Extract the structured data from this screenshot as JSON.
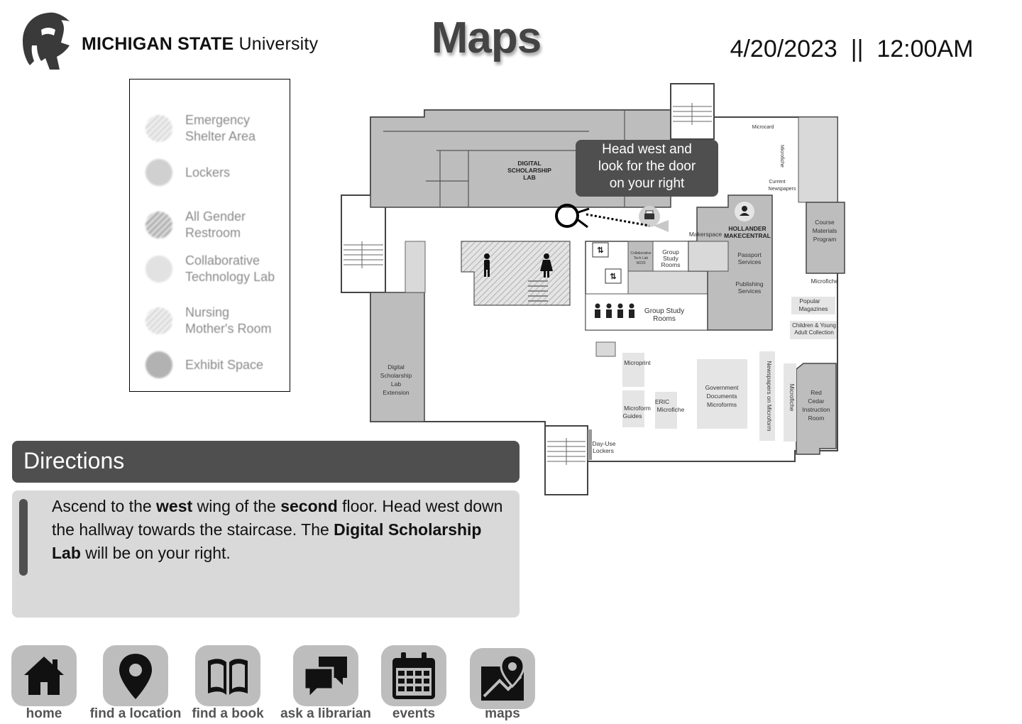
{
  "header": {
    "brand_bold": "MICHIGAN STATE",
    "brand_regular": "University",
    "title": "Maps",
    "date": "4/20/2023",
    "separator": "||",
    "time": "12:00AM"
  },
  "legend": {
    "items": [
      {
        "label_line1": "Emergency",
        "label_line2": "Shelter Area",
        "icon": "hatched-circle-icon"
      },
      {
        "label_line1": "Lockers",
        "label_line2": "",
        "icon": "gray-circle-icon"
      },
      {
        "label_line1": "All Gender",
        "label_line2": "Restroom",
        "icon": "hatched-circle-icon"
      },
      {
        "label_line1": "Collaborative",
        "label_line2": "Technology Lab",
        "icon": "pale-circle-icon"
      },
      {
        "label_line1": "Nursing",
        "label_line2": "Mother's Room",
        "icon": "hatched-circle-icon"
      },
      {
        "label_line1": "Exhibit Space",
        "label_line2": "",
        "icon": "dark-circle-icon"
      }
    ]
  },
  "map": {
    "labels": {
      "digital_lab_1": "DIGITAL",
      "digital_lab_2": "SCHOLARSHIP",
      "digital_lab_3": "LAB",
      "microcard": "Microcard",
      "microfiche_vert": "Microfiche",
      "current_news_1": "Current",
      "current_news_2": "Newspapers",
      "course_1": "Course",
      "course_2": "Materials",
      "course_3": "Program",
      "makerspace": "Makerspace",
      "hollander_1": "HOLLANDER",
      "hollander_2": "MAKECENTRAL",
      "passport_1": "Passport",
      "passport_2": "Services",
      "publishing_1": "Publishing",
      "publishing_2": "Services",
      "microfiche": "Microfiche",
      "popular_1": "Popular",
      "popular_2": "Magazines",
      "children_1": "Children & Young",
      "children_2": "Adult Collection",
      "collab_1": "Collaborative",
      "collab_2": "Tech Lab",
      "collab_3": "W220",
      "group1_1": "Group",
      "group1_2": "Study",
      "group1_3": "Rooms",
      "group2_1": "Group Study",
      "group2_2": "Rooms",
      "microprint": "Microprint",
      "microform_1": "Microform",
      "microform_2": "Guides",
      "eric_1": "ERIC",
      "eric_2": "Microfiche",
      "gov_1": "Government",
      "gov_2": "Documents",
      "gov_3": "Microforms",
      "newspapers_micro": "Newspapers on Microform",
      "microfiche_vert2": "Microfiche",
      "red_1": "Red",
      "red_2": "Cedar",
      "red_3": "Instruction",
      "red_4": "Room",
      "dslx_1": "Digital",
      "dslx_2": "Scholarship",
      "dslx_3": "Lab",
      "dslx_4": "Extension",
      "dayuse_1": "Day-Use",
      "dayuse_2": "Lockers"
    },
    "tooltip_line1": "Head west and",
    "tooltip_line2": "look for the door",
    "tooltip_line3": "on your right"
  },
  "directions": {
    "title": "Directions",
    "t1": "Ascend to the ",
    "b1": "west",
    "t2": " wing of the ",
    "b2": "second",
    "t3": " floor. Head west down the hallway towards the staircase. The ",
    "b3": "Digital Scholarship Lab",
    "t4": " will be on your right."
  },
  "nav": [
    {
      "label": "home",
      "icon": "home-icon"
    },
    {
      "label": "find a location",
      "icon": "map-pin-icon"
    },
    {
      "label": "find a book",
      "icon": "open-book-icon"
    },
    {
      "label": "ask a librarian",
      "icon": "chat-bubbles-icon"
    },
    {
      "label": "events",
      "icon": "calendar-icon"
    },
    {
      "label": "maps",
      "icon": "map-icon"
    }
  ]
}
